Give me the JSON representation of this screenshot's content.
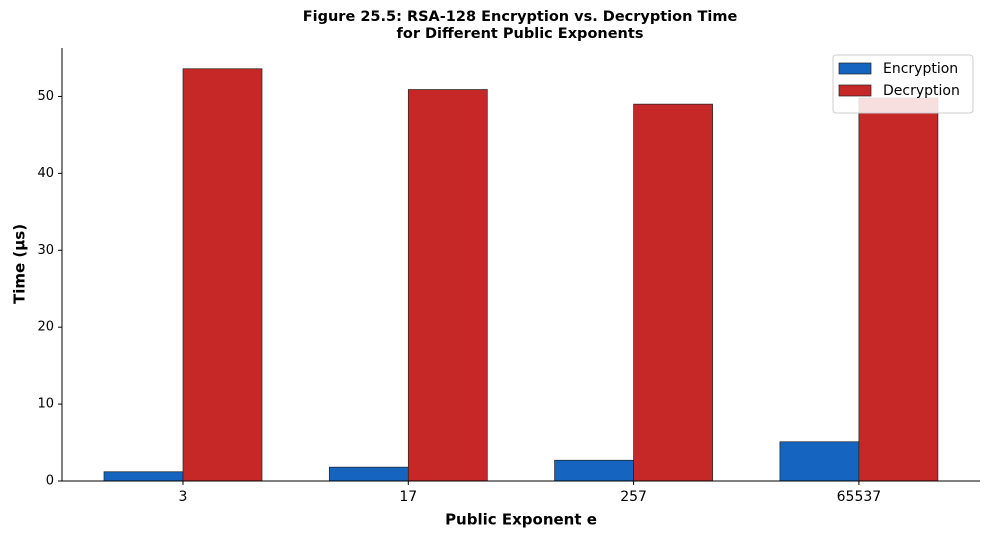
{
  "chart_data": {
    "type": "bar",
    "title": [
      "Figure 25.5: RSA-128 Encryption vs. Decryption Time",
      "for Different Public Exponents"
    ],
    "x_label": "Public Exponent e",
    "y_label": "Time (μs)",
    "categories": [
      "3",
      "17",
      "257",
      "65537"
    ],
    "series": [
      {
        "name": "Encryption",
        "color": "#1565c0",
        "values": [
          1.2,
          1.8,
          2.7,
          5.1
        ]
      },
      {
        "name": "Decryption",
        "color": "#c62828",
        "values": [
          53.6,
          50.9,
          49.0,
          49.8
        ]
      }
    ],
    "ylim": [
      0,
      56.3
    ],
    "yticks": [
      0,
      10,
      20,
      30,
      40,
      50
    ],
    "legend": "upper right",
    "grid": false
  }
}
